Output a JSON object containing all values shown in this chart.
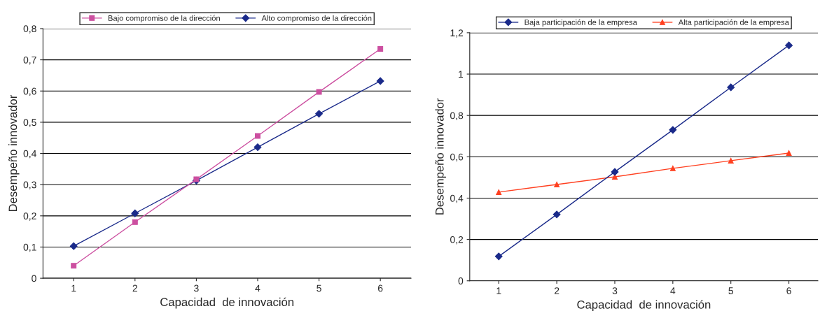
{
  "chart_data": [
    {
      "type": "line",
      "xlabel": "Capacidad  de innovación",
      "ylabel": "Desempeño innovador",
      "categories": [
        "1",
        "2",
        "3",
        "4",
        "5",
        "6"
      ],
      "series": [
        {
          "name": "Bajo compromiso de la dirección",
          "color": "#cc4fa0",
          "marker": "square",
          "values": [
            0.04,
            0.18,
            0.317,
            0.456,
            0.597,
            0.735
          ]
        },
        {
          "name": "Alto compromiso de la dirección",
          "color": "#1a2a8a",
          "marker": "diamond",
          "values": [
            0.103,
            0.208,
            0.313,
            0.42,
            0.527,
            0.632
          ]
        }
      ],
      "ylim": [
        0,
        0.8
      ],
      "yticks": [
        0,
        {
          "value": 0.1,
          "label": "0,1"
        },
        {
          "value": 0.2,
          "label": "0,2"
        },
        {
          "value": 0.3,
          "label": "0,3"
        },
        {
          "value": 0.4,
          "label": "0,4"
        },
        {
          "value": 0.5,
          "label": "0,5"
        },
        {
          "value": 0.6,
          "label": "0,6"
        },
        {
          "value": 0.7,
          "label": "0,7"
        },
        {
          "value": 0.8,
          "label": "0,8"
        }
      ],
      "grid": "y",
      "legend": "top"
    },
    {
      "type": "line",
      "xlabel": "Capacidad  de innovación",
      "ylabel": "Desempeño innovador",
      "categories": [
        "1",
        "2",
        "3",
        "4",
        "5",
        "6"
      ],
      "series": [
        {
          "name": "Baja participación de la empresa",
          "color": "#1a2a8a",
          "marker": "diamond",
          "values": [
            0.118,
            0.321,
            0.527,
            0.73,
            0.936,
            1.139
          ]
        },
        {
          "name": "Alta participación de la empresa",
          "color": "#ff4020",
          "marker": "triangle",
          "values": [
            0.429,
            0.466,
            0.503,
            0.544,
            0.581,
            0.618
          ]
        }
      ],
      "ylim": [
        0,
        1.2
      ],
      "yticks": [
        0,
        {
          "value": 0.2,
          "label": "0,2"
        },
        {
          "value": 0.4,
          "label": "0,4"
        },
        {
          "value": 0.6,
          "label": "0,6"
        },
        {
          "value": 0.8,
          "label": "0,8"
        },
        1,
        {
          "value": 1.2,
          "label": "1,2"
        }
      ],
      "grid": "y",
      "legend": "top"
    }
  ]
}
